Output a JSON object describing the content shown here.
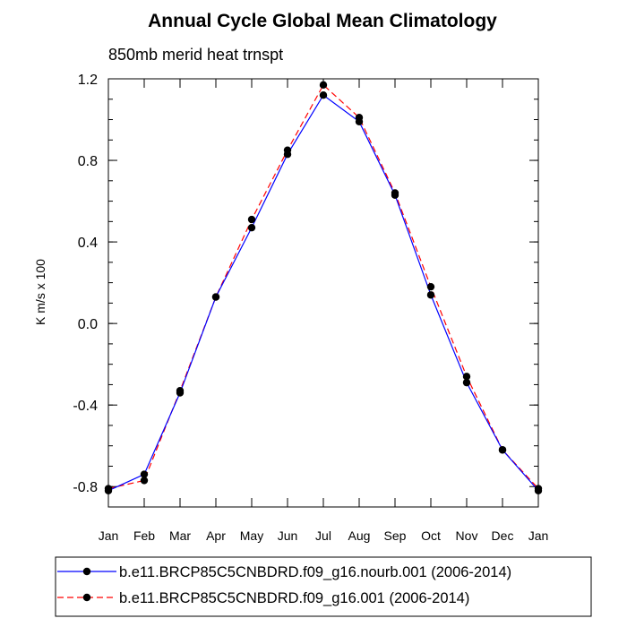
{
  "chart_data": {
    "type": "line",
    "title": "Annual Cycle Global Mean Climatology",
    "subtitle": "850mb merid heat trnspt",
    "xlabel": "",
    "ylabel": "K m/s x 100",
    "categories": [
      "Jan",
      "Feb",
      "Mar",
      "Apr",
      "May",
      "Jun",
      "Jul",
      "Aug",
      "Sep",
      "Oct",
      "Nov",
      "Dec",
      "Jan"
    ],
    "ylim": [
      -0.9,
      1.2
    ],
    "yticks": [
      -0.8,
      -0.4,
      0.0,
      0.4,
      0.8,
      1.2
    ],
    "ytick_labels": [
      "-0.8",
      "-0.4",
      "0.0",
      "0.4",
      "0.8",
      "1.2"
    ],
    "grid": false,
    "legend_position": "bottom",
    "series": [
      {
        "name": "b.e11.BRCP85C5CNBDRD.f09_g16.nourb.001 (2006-2014)",
        "color": "#0000ff",
        "line_style": "solid",
        "values": [
          -0.82,
          -0.74,
          -0.34,
          0.13,
          0.47,
          0.83,
          1.12,
          0.99,
          0.63,
          0.14,
          -0.29,
          -0.62,
          -0.82
        ]
      },
      {
        "name": "b.e11.BRCP85C5CNBDRD.f09_g16.001 (2006-2014)",
        "color": "#ff0000",
        "line_style": "dashed",
        "values": [
          -0.81,
          -0.77,
          -0.33,
          0.13,
          0.51,
          0.85,
          1.17,
          1.01,
          0.64,
          0.18,
          -0.26,
          -0.62,
          -0.81
        ]
      }
    ]
  }
}
